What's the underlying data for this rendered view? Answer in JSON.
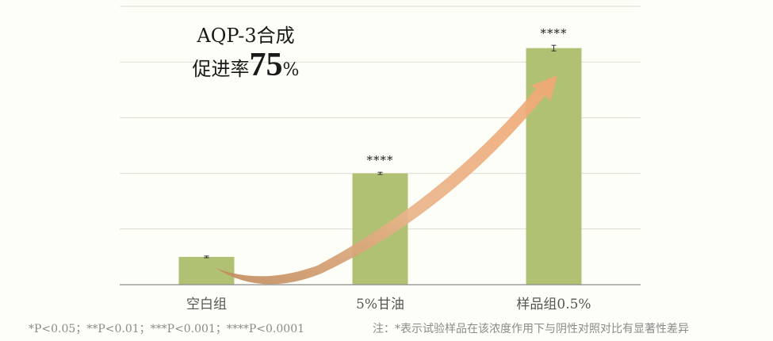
{
  "chart_data": {
    "type": "bar",
    "categories": [
      "空白组",
      "5%甘油",
      "样品组0.5%"
    ],
    "values": [
      10,
      40,
      85
    ],
    "errors": [
      0.3,
      0.4,
      1.0
    ],
    "significance": [
      "",
      "****",
      "****"
    ],
    "ylim": [
      0,
      100
    ],
    "grid": true,
    "bar_color": "#b1c173",
    "arrow_color": "#e8a66c"
  },
  "headline": {
    "line1": "AQP-3合成",
    "line2_prefix": "促进率",
    "line2_value": "75",
    "line2_unit": "%"
  },
  "footnotes": {
    "significance_legend": "*P<0.05；**P<0.01；***P<0.001；****P<0.0001",
    "note": "注：*表示试验样品在该浓度作用下与阴性对照对比有显著性差异"
  }
}
